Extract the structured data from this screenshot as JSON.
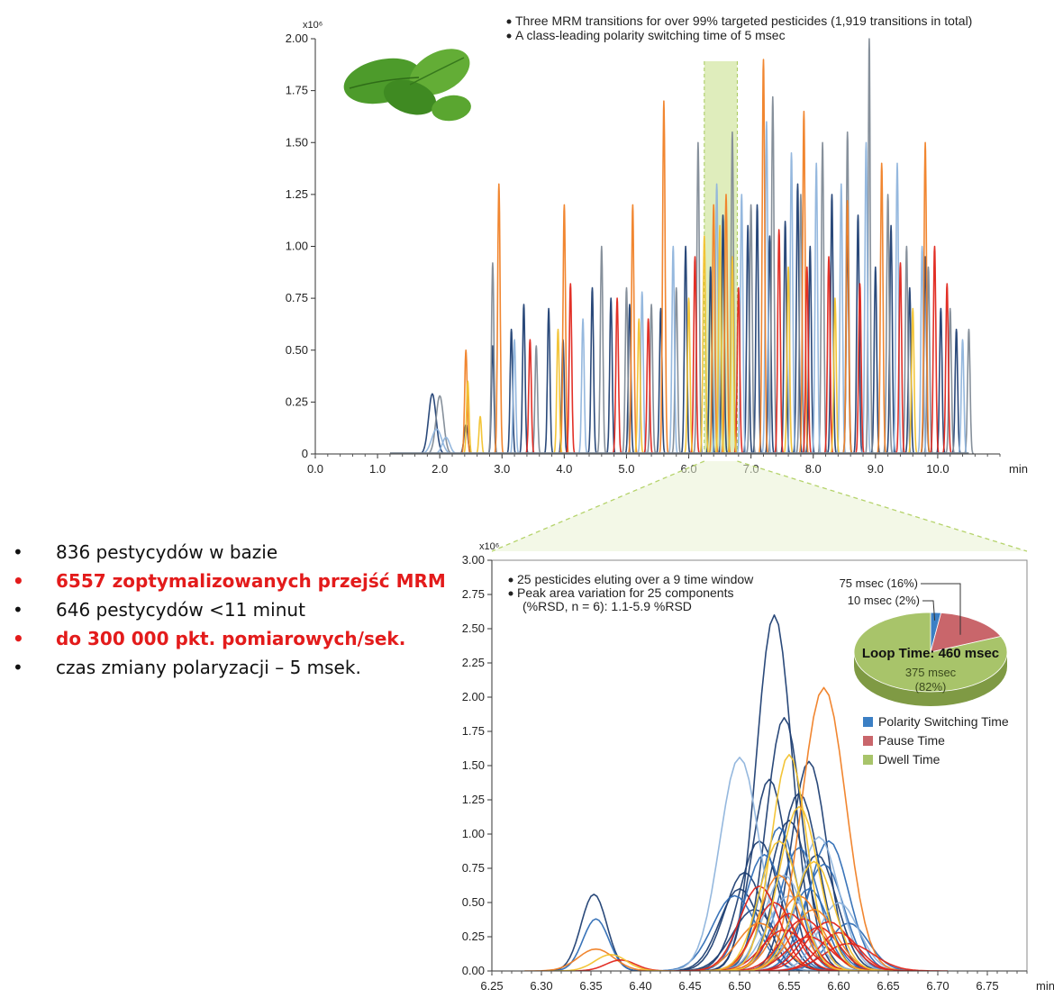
{
  "bullets": [
    {
      "text": "836 pestycydów w bazie",
      "highlight": false
    },
    {
      "text": "6557 zoptymalizowanych przejść MRM",
      "highlight": true
    },
    {
      "text": "646 pestycydów <11 minut",
      "highlight": false
    },
    {
      "text": "do 300 000 pkt. pomiarowych/sek.",
      "highlight": true
    },
    {
      "text": "czas zmiany polaryzacji – 5 msek.",
      "highlight": false
    }
  ],
  "bullet_glyph": "•",
  "colors": {
    "navy": "#1f3f73",
    "blue": "#2f6db5",
    "lightblue": "#8fb4dc",
    "gray": "#7f8a96",
    "orange": "#f07f25",
    "red": "#e0251b",
    "gold": "#f2c22e",
    "leaf": "#4e9a2a",
    "highlight_band": "#d4e7a6",
    "pie_blue": "#3b7fc4",
    "pie_red": "#c9666b",
    "pie_green": "#a8c46a",
    "bullet_red": "#e31b1b"
  },
  "leaf_icon": "mint-leaf-icon",
  "chart_data": [
    {
      "type": "line",
      "chart_id": "full-chromatogram",
      "yscale_label": "x10⁶",
      "xunit": "min",
      "xlim": [
        0,
        11.0
      ],
      "ylim": [
        0,
        2.0
      ],
      "xticks": [
        0.0,
        1.0,
        2.0,
        3.0,
        4.0,
        5.0,
        6.0,
        7.0,
        8.0,
        9.0,
        10.0
      ],
      "xtick_labels": [
        "0.0",
        "1.0",
        "2.0",
        "3.0",
        "4.0",
        "5.0",
        "6.0",
        "7.0",
        "8.0",
        "9.0",
        "10.0"
      ],
      "yticks": [
        0,
        0.25,
        0.5,
        0.75,
        1.0,
        1.25,
        1.5,
        1.75,
        2.0
      ],
      "ytick_labels": [
        "0",
        "0.25",
        "0.50",
        "0.75",
        "1.00",
        "1.25",
        "1.50",
        "1.75",
        "2.00"
      ],
      "annotations": [
        "Three MRM transitions for over 99% targeted pesticides (1,919 transitions in total)",
        "A class-leading polarity switching time of 5 msec"
      ],
      "highlight_window": [
        6.25,
        6.78
      ],
      "series": [
        {
          "color": "navy",
          "peaks": [
            [
              1.88,
              0.29,
              0.06
            ],
            [
              2.42,
              0.14,
              0.03
            ],
            [
              2.85,
              0.52,
              0.02
            ],
            [
              3.15,
              0.6,
              0.02
            ],
            [
              3.35,
              0.72,
              0.02
            ],
            [
              3.75,
              0.7,
              0.02
            ],
            [
              3.98,
              0.55,
              0.02
            ],
            [
              4.45,
              0.8,
              0.02
            ],
            [
              4.75,
              0.75,
              0.02
            ],
            [
              5.05,
              0.72,
              0.02
            ],
            [
              5.55,
              0.7,
              0.02
            ],
            [
              5.95,
              1.0,
              0.02
            ],
            [
              6.35,
              0.9,
              0.02
            ],
            [
              6.55,
              1.15,
              0.02
            ],
            [
              6.95,
              1.1,
              0.02
            ],
            [
              7.1,
              1.2,
              0.02
            ],
            [
              7.3,
              1.05,
              0.02
            ],
            [
              7.55,
              1.12,
              0.02
            ],
            [
              7.75,
              1.3,
              0.02
            ],
            [
              7.95,
              1.0,
              0.02
            ],
            [
              8.3,
              1.25,
              0.02
            ],
            [
              8.55,
              1.05,
              0.02
            ],
            [
              8.72,
              1.15,
              0.02
            ],
            [
              9.0,
              0.9,
              0.02
            ],
            [
              9.25,
              1.1,
              0.02
            ],
            [
              9.55,
              0.8,
              0.02
            ],
            [
              9.8,
              0.95,
              0.02
            ],
            [
              10.05,
              0.7,
              0.02
            ],
            [
              10.3,
              0.6,
              0.02
            ]
          ]
        },
        {
          "color": "gray",
          "peaks": [
            [
              2.0,
              0.28,
              0.06
            ],
            [
              2.85,
              0.92,
              0.02
            ],
            [
              3.55,
              0.52,
              0.02
            ],
            [
              4.6,
              1.0,
              0.02
            ],
            [
              5.0,
              0.8,
              0.02
            ],
            [
              5.4,
              0.72,
              0.02
            ],
            [
              5.8,
              0.8,
              0.02
            ],
            [
              6.15,
              1.5,
              0.02
            ],
            [
              6.7,
              1.55,
              0.02
            ],
            [
              7.0,
              1.2,
              0.02
            ],
            [
              7.35,
              1.72,
              0.02
            ],
            [
              7.8,
              1.25,
              0.02
            ],
            [
              8.15,
              1.5,
              0.02
            ],
            [
              8.55,
              1.55,
              0.02
            ],
            [
              8.9,
              2.0,
              0.016
            ],
            [
              9.2,
              1.25,
              0.02
            ],
            [
              9.5,
              1.0,
              0.02
            ],
            [
              9.85,
              0.9,
              0.02
            ],
            [
              10.2,
              0.7,
              0.02
            ],
            [
              10.5,
              0.6,
              0.02
            ]
          ]
        },
        {
          "color": "lightblue",
          "peaks": [
            [
              1.95,
              0.12,
              0.08
            ],
            [
              2.1,
              0.08,
              0.06
            ],
            [
              3.2,
              0.55,
              0.02
            ],
            [
              4.3,
              0.65,
              0.02
            ],
            [
              5.25,
              0.78,
              0.02
            ],
            [
              5.75,
              1.0,
              0.02
            ],
            [
              6.45,
              1.3,
              0.02
            ],
            [
              6.85,
              1.25,
              0.02
            ],
            [
              7.25,
              1.6,
              0.02
            ],
            [
              7.65,
              1.45,
              0.02
            ],
            [
              8.05,
              1.4,
              0.02
            ],
            [
              8.45,
              1.3,
              0.02
            ],
            [
              8.85,
              1.5,
              0.02
            ],
            [
              9.35,
              1.4,
              0.02
            ],
            [
              9.75,
              1.0,
              0.02
            ],
            [
              10.4,
              0.55,
              0.02
            ]
          ]
        },
        {
          "color": "orange",
          "peaks": [
            [
              2.42,
              0.5,
              0.02
            ],
            [
              2.95,
              1.3,
              0.02
            ],
            [
              4.0,
              1.2,
              0.02
            ],
            [
              5.1,
              1.2,
              0.02
            ],
            [
              5.6,
              1.7,
              0.02
            ],
            [
              6.4,
              1.2,
              0.02
            ],
            [
              6.6,
              1.25,
              0.02
            ],
            [
              7.2,
              1.9,
              0.02
            ],
            [
              7.85,
              1.65,
              0.02
            ],
            [
              8.55,
              1.22,
              0.02
            ],
            [
              9.1,
              1.4,
              0.02
            ],
            [
              9.8,
              1.5,
              0.02
            ]
          ]
        },
        {
          "color": "red",
          "peaks": [
            [
              3.45,
              0.55,
              0.02
            ],
            [
              4.1,
              0.82,
              0.02
            ],
            [
              4.85,
              0.75,
              0.02
            ],
            [
              5.35,
              0.65,
              0.02
            ],
            [
              6.1,
              0.95,
              0.02
            ],
            [
              6.8,
              0.8,
              0.02
            ],
            [
              7.45,
              1.08,
              0.02
            ],
            [
              7.9,
              0.9,
              0.02
            ],
            [
              8.25,
              0.95,
              0.02
            ],
            [
              8.75,
              0.82,
              0.02
            ],
            [
              9.4,
              0.92,
              0.02
            ],
            [
              9.95,
              1.0,
              0.02
            ],
            [
              10.15,
              0.82,
              0.02
            ]
          ]
        },
        {
          "color": "gold",
          "peaks": [
            [
              2.45,
              0.35,
              0.02
            ],
            [
              2.65,
              0.18,
              0.02
            ],
            [
              3.9,
              0.6,
              0.02
            ],
            [
              5.2,
              0.65,
              0.02
            ],
            [
              6.0,
              0.75,
              0.02
            ],
            [
              6.25,
              1.05,
              0.02
            ],
            [
              6.5,
              1.1,
              0.02
            ],
            [
              6.7,
              0.95,
              0.02
            ],
            [
              7.6,
              0.9,
              0.02
            ],
            [
              8.35,
              0.75,
              0.02
            ],
            [
              9.6,
              0.7,
              0.02
            ]
          ]
        }
      ]
    },
    {
      "type": "line",
      "chart_id": "zoomed-window",
      "yscale_label": "x10⁶",
      "xunit": "min",
      "xlim": [
        6.25,
        6.79
      ],
      "ylim": [
        0,
        3.0
      ],
      "xticks": [
        6.25,
        6.3,
        6.35,
        6.4,
        6.45,
        6.5,
        6.55,
        6.6,
        6.65,
        6.7,
        6.75
      ],
      "xtick_labels": [
        "6.25",
        "6.30",
        "6.35",
        "6.40",
        "6.45",
        "6.50",
        "6.55",
        "6.60",
        "6.65",
        "6.70",
        "6.75"
      ],
      "yticks": [
        0,
        0.25,
        0.5,
        0.75,
        1.0,
        1.25,
        1.5,
        1.75,
        2.0,
        2.25,
        2.5,
        2.75,
        3.0
      ],
      "ytick_labels": [
        "0.00",
        "0.25",
        "0.50",
        "0.75",
        "1.00",
        "1.25",
        "1.50",
        "1.75",
        "2.00",
        "2.25",
        "2.50",
        "2.75",
        "3.00"
      ],
      "annotations": [
        "25 pesticides eluting over a 9 time window",
        "Peak area variation for 25 components",
        "(%RSD, n = 6): 1.1-5.9 %RSD"
      ],
      "series": [
        {
          "color": "navy",
          "peaks": [
            [
              6.353,
              0.56,
              0.013
            ],
            [
              6.535,
              2.6,
              0.018
            ],
            [
              6.545,
              1.85,
              0.018
            ],
            [
              6.57,
              1.53,
              0.018
            ],
            [
              6.53,
              1.4,
              0.018
            ],
            [
              6.505,
              0.72,
              0.02
            ],
            [
              6.56,
              1.3,
              0.02
            ],
            [
              6.52,
              0.95,
              0.02
            ],
            [
              6.55,
              1.1,
              0.02
            ],
            [
              6.578,
              0.85,
              0.02
            ],
            [
              6.5,
              0.6,
              0.02
            ],
            [
              6.515,
              0.45,
              0.022
            ]
          ]
        },
        {
          "color": "blue",
          "peaks": [
            [
              6.355,
              0.38,
              0.013
            ],
            [
              6.54,
              1.05,
              0.018
            ],
            [
              6.56,
              0.9,
              0.02
            ],
            [
              6.525,
              0.85,
              0.02
            ],
            [
              6.585,
              0.78,
              0.02
            ],
            [
              6.59,
              0.95,
              0.02
            ],
            [
              6.495,
              0.55,
              0.022
            ],
            [
              6.57,
              0.6,
              0.02
            ],
            [
              6.61,
              0.35,
              0.02
            ]
          ]
        },
        {
          "color": "lightblue",
          "peaks": [
            [
              6.5,
              1.56,
              0.02
            ],
            [
              6.58,
              0.98,
              0.02
            ],
            [
              6.545,
              0.7,
              0.02
            ],
            [
              6.55,
              0.55,
              0.022
            ],
            [
              6.6,
              0.5,
              0.02
            ]
          ]
        },
        {
          "color": "orange",
          "peaks": [
            [
              6.355,
              0.16,
              0.018
            ],
            [
              6.585,
              2.07,
              0.022
            ],
            [
              6.54,
              0.7,
              0.02
            ],
            [
              6.56,
              0.55,
              0.022
            ],
            [
              6.575,
              0.45,
              0.022
            ],
            [
              6.52,
              0.35,
              0.022
            ]
          ]
        },
        {
          "color": "red",
          "peaks": [
            [
              6.38,
              0.08,
              0.015
            ],
            [
              6.52,
              0.62,
              0.02
            ],
            [
              6.535,
              0.5,
              0.02
            ],
            [
              6.55,
              0.42,
              0.02
            ],
            [
              6.565,
              0.38,
              0.022
            ],
            [
              6.58,
              0.32,
              0.02
            ],
            [
              6.59,
              0.36,
              0.022
            ],
            [
              6.6,
              0.28,
              0.02
            ],
            [
              6.57,
              0.25,
              0.022
            ],
            [
              6.545,
              0.3,
              0.022
            ],
            [
              6.61,
              0.2,
              0.025
            ]
          ]
        },
        {
          "color": "gold",
          "peaks": [
            [
              6.37,
              0.12,
              0.016
            ],
            [
              6.55,
              1.58,
              0.018
            ],
            [
              6.56,
              1.2,
              0.02
            ],
            [
              6.54,
              0.95,
              0.02
            ],
            [
              6.575,
              0.8,
              0.02
            ]
          ]
        }
      ],
      "pie": {
        "title": "Loop Time: 460 msec",
        "slices": [
          {
            "label": "Polarity Switching Time",
            "value_ms": 10,
            "percent": 2,
            "color": "pie_blue",
            "callout": "10 msec (2%)"
          },
          {
            "label": "Pause Time",
            "value_ms": 75,
            "percent": 16,
            "color": "pie_red",
            "callout": "75 msec (16%)"
          },
          {
            "label": "Dwell Time",
            "value_ms": 375,
            "percent": 82,
            "color": "pie_green",
            "callout_lines": [
              "375 msec",
              "(82%)"
            ]
          }
        ]
      }
    }
  ]
}
